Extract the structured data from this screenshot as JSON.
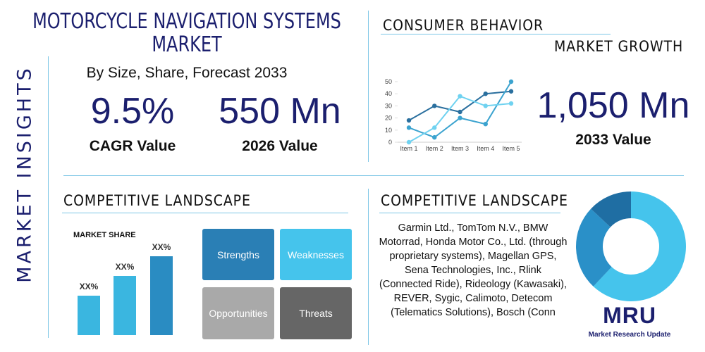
{
  "side_label": "MARKET INSIGHTS",
  "header": {
    "title": "MOTORCYCLE NAVIGATION SYSTEMS MARKET",
    "subtitle": "By Size, Share, Forecast 2033"
  },
  "stats": [
    {
      "value": "9.5%",
      "label": "CAGR Value"
    },
    {
      "value": "550 Mn",
      "label": "2026 Value"
    },
    {
      "value": "1,050 Mn",
      "label": "2033 Value"
    }
  ],
  "consumer_behavior": {
    "title": "CONSUMER BEHAVIOR",
    "subtitle": "MARKET GROWTH",
    "chart": {
      "type": "line",
      "categories": [
        "Item 1",
        "Item 2",
        "Item 3",
        "Item 4",
        "Item 5"
      ],
      "ylim": [
        0,
        50
      ],
      "yticks": [
        0,
        10,
        20,
        30,
        40,
        50
      ],
      "series": [
        {
          "color": "#2a6f9e",
          "values": [
            18,
            30,
            25,
            40,
            42
          ]
        },
        {
          "color": "#3ba3cf",
          "values": [
            12,
            4,
            20,
            15,
            50
          ]
        },
        {
          "color": "#6fd2f0",
          "values": [
            0,
            12,
            38,
            30,
            32
          ]
        }
      ]
    }
  },
  "competitive_landscape": {
    "title": "COMPETITIVE LANDSCAPE",
    "chart": {
      "type": "bar",
      "title": "MARKET SHARE",
      "values": [
        50,
        75,
        100
      ],
      "value_labels": [
        "XX%",
        "XX%",
        "XX%"
      ],
      "ylim": [
        0,
        100
      ],
      "colors": [
        "#3ab6e0",
        "#3ab6e0",
        "#2a8cc2"
      ]
    },
    "swot": [
      "Strengths",
      "Weaknesses",
      "Opportunities",
      "Threats"
    ]
  },
  "companies": {
    "title": "COMPETITIVE LANDSCAPE",
    "text": "Garmin Ltd., TomTom N.V., BMW Motorrad, Honda Motor Co., Ltd. (through proprietary systems), Magellan GPS, Sena Technologies, Inc., Rlink (Connected Ride), Rideology (Kawasaki), REVER, Sygic, Calimoto, Detecom (Telematics Solutions), Bosch (Conn",
    "chart": {
      "type": "pie",
      "values": [
        62,
        25,
        13
      ],
      "colors": [
        "#45c4ec",
        "#2a90c8",
        "#1f6ea3"
      ]
    }
  },
  "logo": {
    "mark": "MRU",
    "name": "Market Research Update"
  }
}
